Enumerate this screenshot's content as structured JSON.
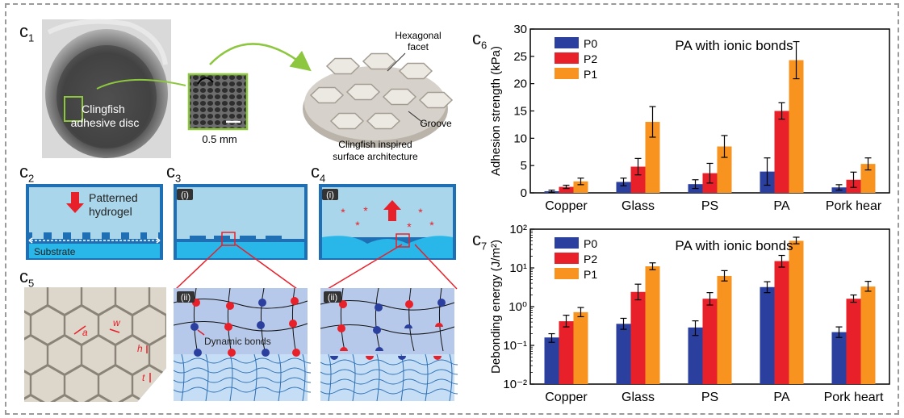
{
  "panels": {
    "c1": "c",
    "c1_sub": "1",
    "c2": "c",
    "c2_sub": "2",
    "c3": "c",
    "c3_sub": "3",
    "c4": "c",
    "c4_sub": "4",
    "c5": "c",
    "c5_sub": "5",
    "c6": "c",
    "c6_sub": "6",
    "c7": "c",
    "c7_sub": "7"
  },
  "c1": {
    "disc_label_1": "Clingfish",
    "disc_label_2": "adhesive disc",
    "scale_bar": "0.5 mm",
    "facet_label_1": "Hexagonal",
    "facet_label_2": "facet",
    "groove_label": "Groove",
    "caption_1": "Clingfish inspired",
    "caption_2": "surface architecture"
  },
  "c2": {
    "hydrogel_1": "Patterned",
    "hydrogel_2": "hydrogel",
    "substrate": "Substrate"
  },
  "c3": {
    "tag_top": "(i)",
    "tag_bottom": "(ii)",
    "dynamic_bonds": "Dynamic bonds"
  },
  "c4": {
    "tag_top": "(i)",
    "tag_bottom": "(ii)"
  },
  "c5": {
    "a": "a",
    "w": "w",
    "h": "h",
    "t": "t"
  },
  "colors": {
    "p0": "#2b3f9e",
    "p2": "#e8202a",
    "p1": "#f7931e",
    "hydrogel_bg": "#a9d6ea",
    "frame_blue": "#1f6fb5"
  },
  "chart_data": [
    {
      "type": "bar",
      "title": "PA with ionic bonds",
      "ylabel": "Adhesion strength (kPa)",
      "xlabel": "",
      "ylim": [
        0,
        30
      ],
      "yticks": [
        "0",
        "5",
        "10",
        "15",
        "20",
        "25",
        "30"
      ],
      "categories": [
        "Copper",
        "Glass",
        "PS",
        "PA",
        "Pork hear"
      ],
      "legend_position": "top-left",
      "series": [
        {
          "name": "P0",
          "values": [
            0.3,
            2.0,
            1.6,
            3.9,
            1.0
          ],
          "errors": [
            0.2,
            0.7,
            0.8,
            2.5,
            0.5
          ]
        },
        {
          "name": "P2",
          "values": [
            1.1,
            4.8,
            3.6,
            15.0,
            2.4
          ],
          "errors": [
            0.3,
            1.5,
            1.8,
            1.5,
            1.4
          ]
        },
        {
          "name": "P1",
          "values": [
            2.1,
            13.0,
            8.5,
            24.3,
            5.3
          ],
          "errors": [
            0.6,
            2.8,
            2.0,
            3.4,
            1.1
          ]
        }
      ]
    },
    {
      "type": "bar",
      "title": "PA with ionic bonds",
      "ylabel": "Debonding energy (J/m²)",
      "xlabel": "",
      "ylim": [
        0.01,
        100
      ],
      "yscale": "log",
      "yticks": [
        "10⁻²",
        "10⁻¹",
        "10⁰",
        "10¹",
        "10²"
      ],
      "categories": [
        "Copper",
        "Glass",
        "PS",
        "PA",
        "Pork heart"
      ],
      "legend_position": "top-left",
      "series": [
        {
          "name": "P0",
          "values": [
            0.16,
            0.36,
            0.29,
            3.2,
            0.22
          ],
          "errors_low": [
            0.12,
            0.26,
            0.18,
            2.3,
            0.16
          ],
          "errors_high": [
            0.2,
            0.5,
            0.43,
            4.4,
            0.3
          ]
        },
        {
          "name": "P2",
          "values": [
            0.42,
            2.4,
            1.6,
            15.0,
            1.6
          ],
          "errors_low": [
            0.3,
            1.5,
            1.1,
            10.5,
            1.3
          ],
          "errors_high": [
            0.6,
            3.8,
            2.3,
            21.0,
            2.0
          ]
        },
        {
          "name": "P1",
          "values": [
            0.72,
            11.0,
            6.2,
            50.0,
            3.3
          ],
          "errors_low": [
            0.55,
            9.0,
            4.6,
            42.0,
            2.5
          ],
          "errors_high": [
            0.95,
            13.5,
            8.5,
            62.0,
            4.5
          ]
        }
      ]
    }
  ]
}
